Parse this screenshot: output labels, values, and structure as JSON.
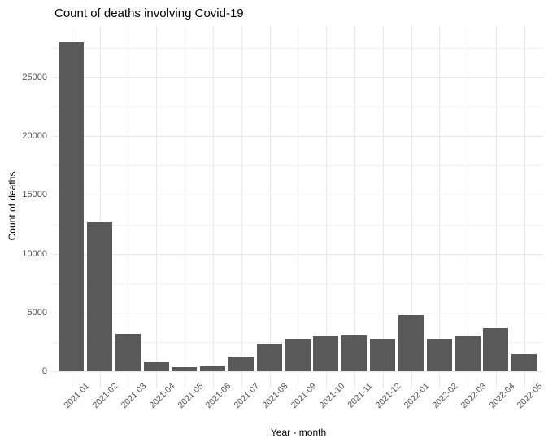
{
  "title": "Count of deaths involving Covid-19",
  "chart_data": {
    "type": "bar",
    "title": "Count of deaths involving Covid-19",
    "xlabel": "Year - month",
    "ylabel": "Count of deaths",
    "categories": [
      "2021-01",
      "2021-02",
      "2021-03",
      "2021-04",
      "2021-05",
      "2021-06",
      "2021-07",
      "2021-08",
      "2021-09",
      "2021-10",
      "2021-11",
      "2021-12",
      "2022-01",
      "2022-02",
      "2022-03",
      "2022-04",
      "2022-05"
    ],
    "values": [
      27950,
      12700,
      3200,
      850,
      350,
      450,
      1250,
      2350,
      2800,
      2950,
      3050,
      2800,
      4750,
      2750,
      3000,
      3700,
      1450
    ],
    "yticks": [
      0,
      5000,
      10000,
      15000,
      20000,
      25000
    ],
    "ylim": [
      0,
      28000
    ],
    "grid": "major+minor horizontal, major vertical at category centers",
    "legend": "none",
    "bar_color": "#595959",
    "background_color": "#ffffff",
    "gridline_color": "#e8e8e8",
    "axis_text_color": "#4d4d4d",
    "title_color": "#000000"
  }
}
